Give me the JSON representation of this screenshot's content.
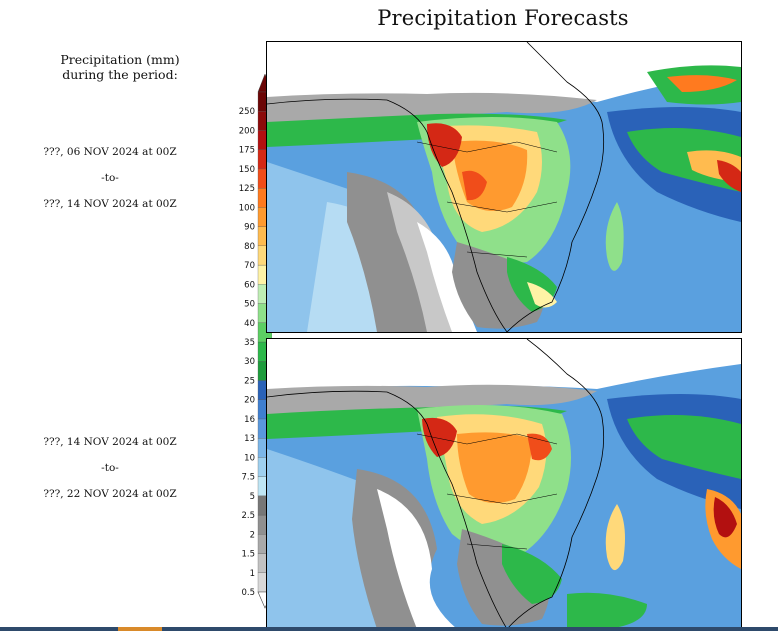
{
  "title": "Precipitation Forecasts",
  "legend": {
    "heading_line1": "Precipitation (mm)",
    "heading_line2": "during the period:",
    "unit": "mm",
    "levels": [
      "0.5",
      "1",
      "1.5",
      "2",
      "2.5",
      "5",
      "7.5",
      "10",
      "13",
      "16",
      "20",
      "25",
      "30",
      "35",
      "40",
      "50",
      "60",
      "70",
      "80",
      "90",
      "100",
      "125",
      "150",
      "175",
      "200",
      "250"
    ],
    "colors": [
      "#d8d8d8",
      "#c2c2c2",
      "#a9a9a9",
      "#909090",
      "#777777",
      "#bfe6f5",
      "#9fd0ef",
      "#7cb6e8",
      "#5a98dc",
      "#3f7fd0",
      "#2a62b8",
      "#1e9c3c",
      "#2db84a",
      "#5ccf63",
      "#8fe08a",
      "#bfeeb4",
      "#fff3a6",
      "#ffd97a",
      "#ffbb4f",
      "#ff9a2f",
      "#ff7a1f",
      "#f04d1a",
      "#d42815",
      "#b21010",
      "#8c0a0a",
      "#6b0606"
    ]
  },
  "panels": [
    {
      "start": "???, 06 NOV 2024 at 00Z",
      "sep": "-to-",
      "end": "???, 14 NOV 2024 at 00Z"
    },
    {
      "start": "???, 14 NOV 2024 at 00Z",
      "sep": "-to-",
      "end": "???, 22 NOV 2024 at 00Z"
    }
  ]
}
